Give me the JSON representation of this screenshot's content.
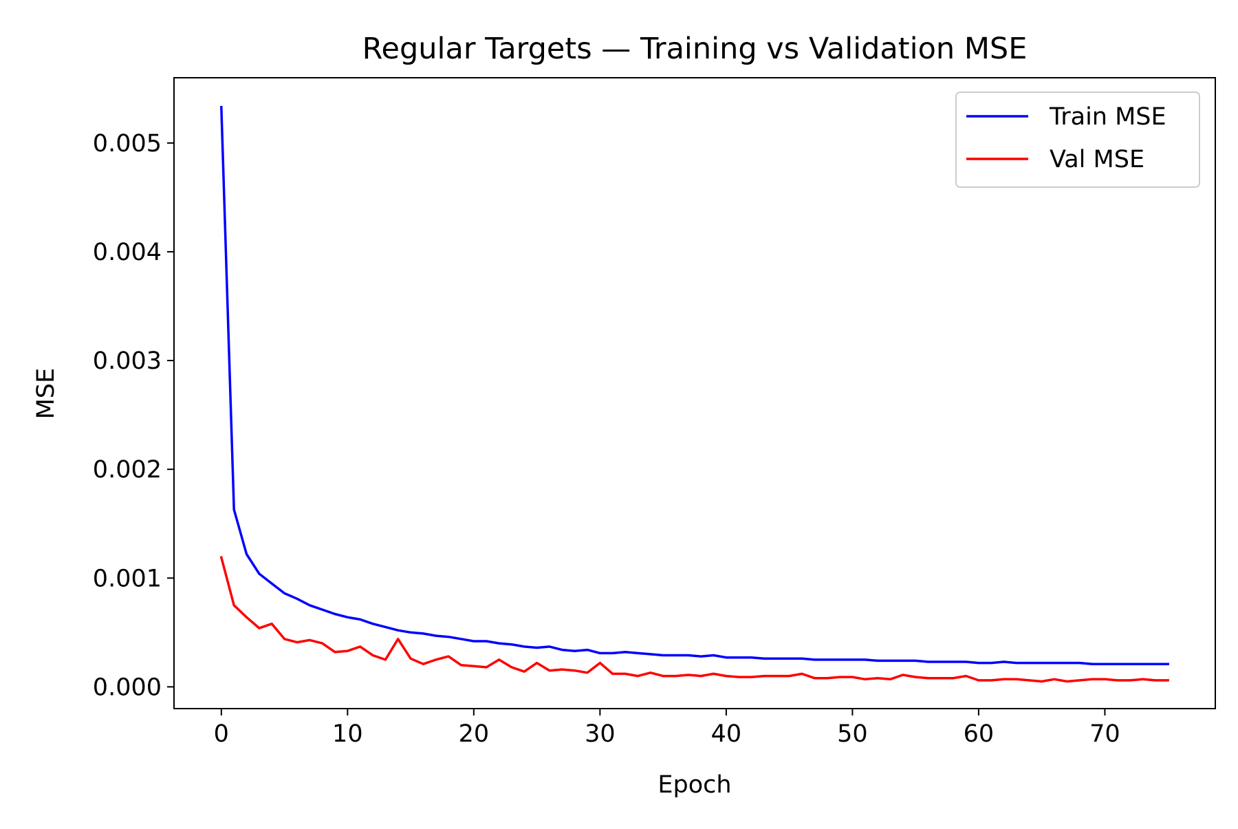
{
  "chart_data": {
    "type": "line",
    "title": "Regular Targets — Training vs Validation MSE",
    "xlabel": "Epoch",
    "ylabel": "MSE",
    "xlim": [
      -3.75,
      78.75
    ],
    "ylim": [
      -0.0002,
      0.0056
    ],
    "xticks": [
      {
        "value": 0,
        "label": "0"
      },
      {
        "value": 10,
        "label": "10"
      },
      {
        "value": 20,
        "label": "20"
      },
      {
        "value": 30,
        "label": "30"
      },
      {
        "value": 40,
        "label": "40"
      },
      {
        "value": 50,
        "label": "50"
      },
      {
        "value": 60,
        "label": "60"
      },
      {
        "value": 70,
        "label": "70"
      }
    ],
    "yticks": [
      {
        "value": 0.0,
        "label": "0.000"
      },
      {
        "value": 0.001,
        "label": "0.001"
      },
      {
        "value": 0.002,
        "label": "0.002"
      },
      {
        "value": 0.003,
        "label": "0.003"
      },
      {
        "value": 0.004,
        "label": "0.004"
      },
      {
        "value": 0.005,
        "label": "0.005"
      }
    ],
    "grid": false,
    "legend_position": "top-right",
    "x": [
      0,
      1,
      2,
      3,
      4,
      5,
      6,
      7,
      8,
      9,
      10,
      11,
      12,
      13,
      14,
      15,
      16,
      17,
      18,
      19,
      20,
      21,
      22,
      23,
      24,
      25,
      26,
      27,
      28,
      29,
      30,
      31,
      32,
      33,
      34,
      35,
      36,
      37,
      38,
      39,
      40,
      41,
      42,
      43,
      44,
      45,
      46,
      47,
      48,
      49,
      50,
      51,
      52,
      53,
      54,
      55,
      56,
      57,
      58,
      59,
      60,
      61,
      62,
      63,
      64,
      65,
      66,
      67,
      68,
      69,
      70,
      71,
      72,
      73,
      74,
      75
    ],
    "series": [
      {
        "name": "Train MSE",
        "color": "#0000ff",
        "values": [
          0.00533,
          0.00163,
          0.00122,
          0.00104,
          0.00095,
          0.00086,
          0.00081,
          0.00075,
          0.00071,
          0.00067,
          0.00064,
          0.00062,
          0.00058,
          0.00055,
          0.00052,
          0.0005,
          0.00049,
          0.00047,
          0.00046,
          0.00044,
          0.00042,
          0.00042,
          0.0004,
          0.00039,
          0.00037,
          0.00036,
          0.00037,
          0.00034,
          0.00033,
          0.00034,
          0.00031,
          0.00031,
          0.00032,
          0.00031,
          0.0003,
          0.00029,
          0.00029,
          0.00029,
          0.00028,
          0.00029,
          0.00027,
          0.00027,
          0.00027,
          0.00026,
          0.00026,
          0.00026,
          0.00026,
          0.00025,
          0.00025,
          0.00025,
          0.00025,
          0.00025,
          0.00024,
          0.00024,
          0.00024,
          0.00024,
          0.00023,
          0.00023,
          0.00023,
          0.00023,
          0.00022,
          0.00022,
          0.00023,
          0.00022,
          0.00022,
          0.00022,
          0.00022,
          0.00022,
          0.00022,
          0.00021,
          0.00021,
          0.00021,
          0.00021,
          0.00021,
          0.00021,
          0.00021
        ]
      },
      {
        "name": "Val MSE",
        "color": "#ff0000",
        "values": [
          0.00119,
          0.00075,
          0.00064,
          0.00054,
          0.00058,
          0.00044,
          0.00041,
          0.00043,
          0.0004,
          0.00032,
          0.00033,
          0.00037,
          0.00029,
          0.00025,
          0.00044,
          0.00026,
          0.00021,
          0.00025,
          0.00028,
          0.0002,
          0.00019,
          0.00018,
          0.00025,
          0.00018,
          0.00014,
          0.00022,
          0.00015,
          0.00016,
          0.00015,
          0.00013,
          0.00022,
          0.00012,
          0.00012,
          0.0001,
          0.00013,
          0.0001,
          0.0001,
          0.00011,
          0.0001,
          0.00012,
          0.0001,
          9e-05,
          9e-05,
          0.0001,
          0.0001,
          0.0001,
          0.00012,
          8e-05,
          8e-05,
          9e-05,
          9e-05,
          7e-05,
          8e-05,
          7e-05,
          0.00011,
          9e-05,
          8e-05,
          8e-05,
          8e-05,
          0.0001,
          6e-05,
          6e-05,
          7e-05,
          7e-05,
          6e-05,
          5e-05,
          7e-05,
          5e-05,
          6e-05,
          7e-05,
          7e-05,
          6e-05,
          6e-05,
          7e-05,
          6e-05,
          6e-05
        ]
      }
    ]
  }
}
